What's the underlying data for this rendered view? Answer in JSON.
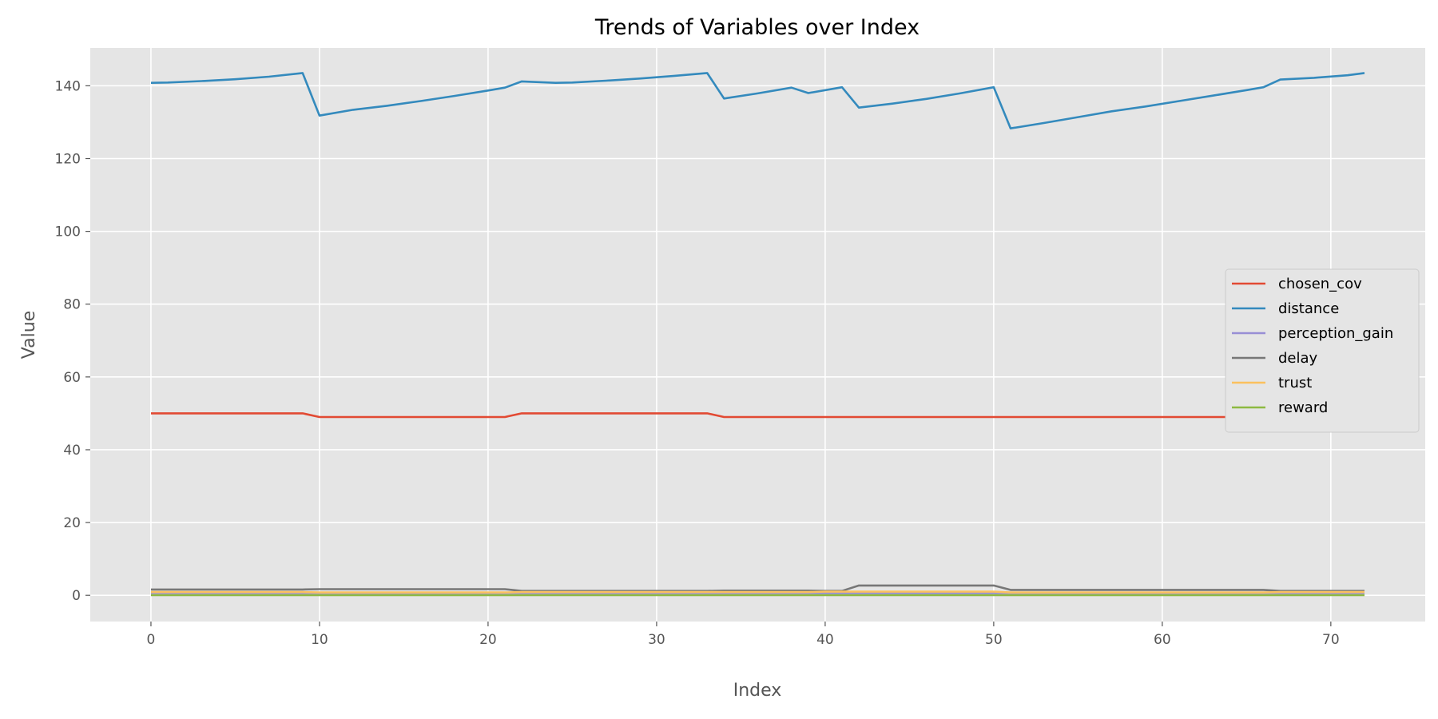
{
  "chart_data": {
    "type": "line",
    "title": "Trends of Variables over Index",
    "xlabel": "Index",
    "ylabel": "Value",
    "xlim": [
      -3.6,
      75.6
    ],
    "ylim": [
      -7.2,
      150.4
    ],
    "xticks": [
      0,
      10,
      20,
      30,
      40,
      50,
      60,
      70
    ],
    "yticks": [
      0,
      20,
      40,
      60,
      80,
      100,
      120,
      140
    ],
    "grid": true,
    "legend_position": "center-right",
    "background_color": "#E5E5E5",
    "grid_color": "#FFFFFF",
    "series": [
      {
        "name": "chosen_cov",
        "color": "#E24A33",
        "points": [
          [
            0,
            50
          ],
          [
            9,
            50
          ],
          [
            10,
            49
          ],
          [
            21,
            49
          ],
          [
            22,
            50
          ],
          [
            33,
            50
          ],
          [
            34,
            49
          ],
          [
            66,
            49
          ],
          [
            67,
            50
          ],
          [
            72,
            50
          ]
        ]
      },
      {
        "name": "distance",
        "color": "#348ABD",
        "points": [
          [
            0,
            140.8
          ],
          [
            1,
            140.9
          ],
          [
            3,
            141.3
          ],
          [
            5,
            141.8
          ],
          [
            7,
            142.5
          ],
          [
            9,
            143.5
          ],
          [
            10,
            131.8
          ],
          [
            12,
            133.4
          ],
          [
            14,
            134.5
          ],
          [
            16,
            135.8
          ],
          [
            18,
            137.2
          ],
          [
            20,
            138.7
          ],
          [
            21,
            139.5
          ],
          [
            22,
            141.2
          ],
          [
            24,
            140.8
          ],
          [
            25,
            140.9
          ],
          [
            27,
            141.4
          ],
          [
            29,
            142
          ],
          [
            31,
            142.7
          ],
          [
            33,
            143.5
          ],
          [
            34,
            136.5
          ],
          [
            36,
            137.9
          ],
          [
            38,
            139.5
          ],
          [
            39,
            138
          ],
          [
            41,
            139.6
          ],
          [
            42,
            134
          ],
          [
            44,
            135.1
          ],
          [
            46,
            136.4
          ],
          [
            48,
            137.9
          ],
          [
            50,
            139.6
          ],
          [
            51,
            128.3
          ],
          [
            53,
            129.8
          ],
          [
            55,
            131.4
          ],
          [
            57,
            133
          ],
          [
            59,
            134.3
          ],
          [
            61,
            135.8
          ],
          [
            63,
            137.3
          ],
          [
            65,
            138.8
          ],
          [
            66,
            139.6
          ],
          [
            67,
            141.7
          ],
          [
            69,
            142.2
          ],
          [
            71,
            142.9
          ],
          [
            72,
            143.5
          ]
        ]
      },
      {
        "name": "perception_gain",
        "color": "#988ED5",
        "points": [
          [
            0,
            0.6
          ],
          [
            72,
            0.6
          ]
        ]
      },
      {
        "name": "delay",
        "color": "#777777",
        "points": [
          [
            0,
            1.6
          ],
          [
            9,
            1.6
          ],
          [
            10,
            1.7
          ],
          [
            21,
            1.7
          ],
          [
            22,
            1.2
          ],
          [
            33,
            1.2
          ],
          [
            34,
            1.3
          ],
          [
            39,
            1.3
          ],
          [
            40,
            1.2
          ],
          [
            41,
            1.2
          ],
          [
            42,
            2.7
          ],
          [
            50,
            2.7
          ],
          [
            51,
            1.5
          ],
          [
            66,
            1.5
          ],
          [
            67,
            1.2
          ],
          [
            72,
            1.2
          ]
        ]
      },
      {
        "name": "trust",
        "color": "#FBC15E",
        "points": [
          [
            0,
            0.9
          ],
          [
            9,
            0.9
          ],
          [
            10,
            0.8
          ],
          [
            21,
            0.8
          ],
          [
            22,
            0.9
          ],
          [
            39,
            0.9
          ],
          [
            40,
            1.0
          ],
          [
            50,
            1.0
          ],
          [
            51,
            0.8
          ],
          [
            66,
            0.8
          ],
          [
            67,
            0.9
          ],
          [
            72,
            0.9
          ]
        ]
      },
      {
        "name": "reward",
        "color": "#8EBA42",
        "points": [
          [
            0,
            0.05
          ],
          [
            72,
            0.05
          ]
        ]
      }
    ]
  }
}
